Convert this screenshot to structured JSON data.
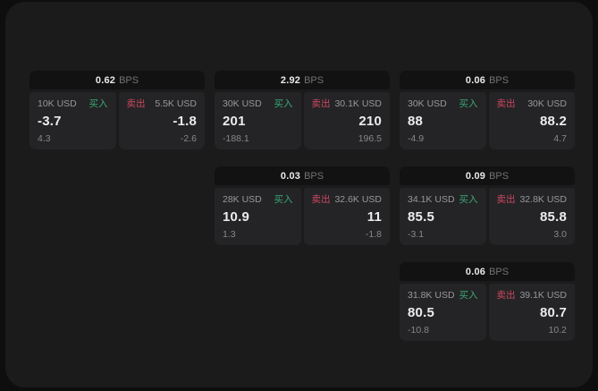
{
  "labels": {
    "bps": "BPS",
    "buy": "买入",
    "sell": "卖出"
  },
  "colors": {
    "page_background": "#0e0e0e",
    "panel_background": "#1b1b1c",
    "card_header_background": "#121213",
    "subcard_background": "#242426",
    "buy_green": "#3aa873",
    "sell_red": "#cc4760",
    "value_text": "#ececec",
    "muted_text": "#98989b"
  },
  "cards": [
    {
      "bps": "0.62",
      "buy": {
        "amount": "10K USD",
        "value": "-3.7",
        "delta": "4.3"
      },
      "sell": {
        "amount": "5.5K USD",
        "value": "-1.8",
        "delta": "-2.6"
      }
    },
    {
      "bps": "2.92",
      "buy": {
        "amount": "30K USD",
        "value": "201",
        "delta": "-188.1"
      },
      "sell": {
        "amount": "30.1K USD",
        "value": "210",
        "delta": "196.5"
      }
    },
    {
      "bps": "0.06",
      "buy": {
        "amount": "30K USD",
        "value": "88",
        "delta": "-4.9"
      },
      "sell": {
        "amount": "30K USD",
        "value": "88.2",
        "delta": "4.7"
      }
    },
    {
      "bps": "0.03",
      "buy": {
        "amount": "28K USD",
        "value": "10.9",
        "delta": "1.3"
      },
      "sell": {
        "amount": "32.6K USD",
        "value": "11",
        "delta": "-1.8"
      }
    },
    {
      "bps": "0.09",
      "buy": {
        "amount": "34.1K USD",
        "value": "85.5",
        "delta": "-3.1"
      },
      "sell": {
        "amount": "32.8K USD",
        "value": "85.8",
        "delta": "3.0"
      }
    },
    {
      "bps": "0.06",
      "buy": {
        "amount": "31.8K USD",
        "value": "80.5",
        "delta": "-10.8"
      },
      "sell": {
        "amount": "39.1K USD",
        "value": "80.7",
        "delta": "10.2"
      }
    }
  ]
}
